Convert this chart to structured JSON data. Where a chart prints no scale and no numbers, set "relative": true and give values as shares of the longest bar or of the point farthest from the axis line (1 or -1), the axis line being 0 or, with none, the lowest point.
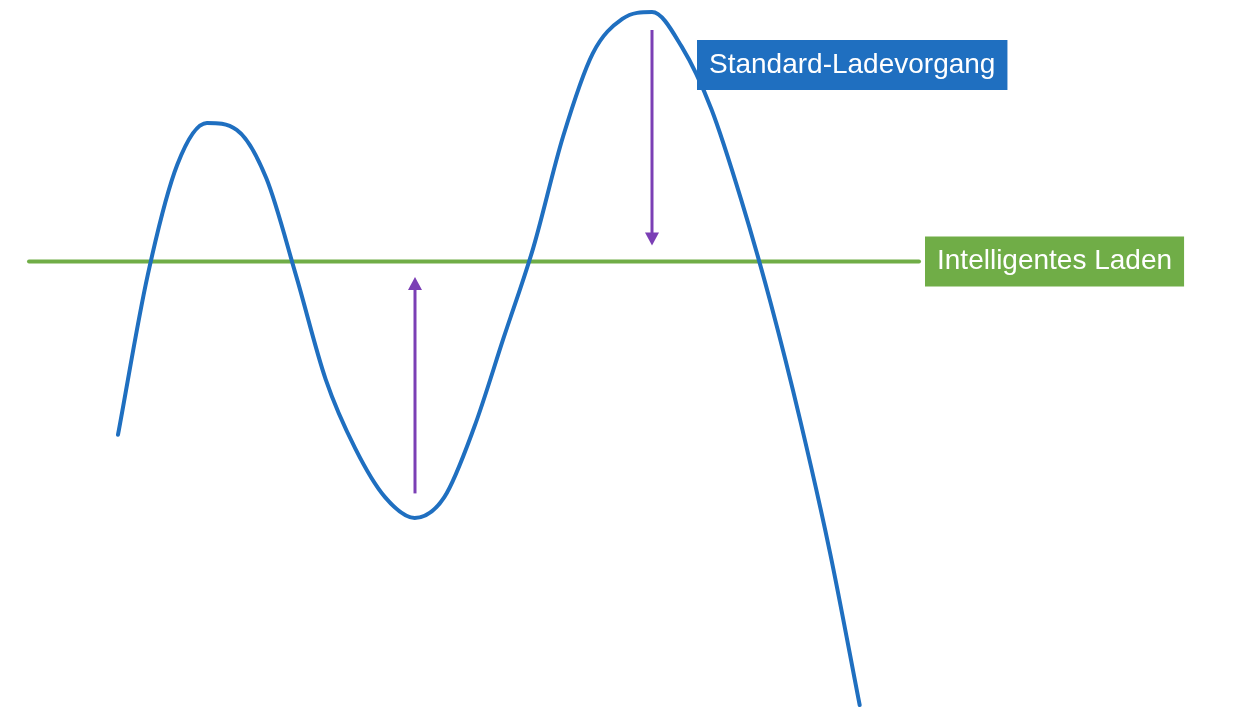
{
  "chart_data": {
    "type": "line",
    "relative": true,
    "marker": "none",
    "line_style": "solid",
    "categories": [
      null,
      null,
      null,
      null,
      null,
      null,
      null,
      null,
      null,
      null,
      null,
      null,
      null,
      null,
      null,
      null,
      null,
      null,
      null,
      null,
      null,
      null,
      null,
      null,
      null,
      null,
      null,
      null,
      null,
      null,
      null
    ],
    "series": [
      {
        "name": "Standard-Ladevorgang",
        "color": "#1f6fc0",
        "values": [
          null,
          null,
          null,
          0.39,
          0.62,
          0.78,
          0.84,
          0.83,
          0.76,
          0.62,
          0.47,
          0.37,
          0.3,
          0.27,
          0.3,
          0.4,
          0.53,
          0.66,
          0.82,
          0.94,
          0.99,
          1.0,
          0.95,
          0.86,
          0.73,
          0.58,
          0.41,
          0.22,
          0.0,
          null,
          null
        ]
      },
      {
        "name": "Intelligentes Laden",
        "color": "#70ad47",
        "values": [
          0.64,
          0.64,
          0.64,
          0.64,
          0.64,
          0.64,
          0.64,
          0.64,
          0.64,
          0.64,
          0.64,
          0.64,
          0.64,
          0.64,
          0.64,
          0.64,
          0.64,
          0.64,
          0.64,
          0.64,
          0.64,
          0.64,
          0.64,
          0.64,
          0.64,
          0.64,
          0.64,
          0.64,
          0.64,
          0.64,
          0.64
        ]
      }
    ]
  }
}
